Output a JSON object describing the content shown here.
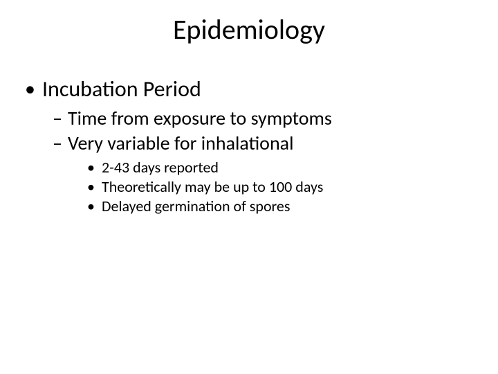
{
  "slide": {
    "title": "Epidemiology",
    "title_fontsize": 40,
    "background_color": "#ffffff",
    "text_color": "#000000",
    "font_family": "Calibri",
    "bullets": {
      "level1": [
        {
          "text": "Incubation Period",
          "marker": "•"
        }
      ],
      "level2": [
        {
          "text": "Time from exposure to symptoms",
          "marker": "–"
        },
        {
          "text": "Very variable for inhalational",
          "marker": "–"
        }
      ],
      "level3": [
        {
          "text": "2-43 days reported",
          "marker": "•"
        },
        {
          "text": "Theoretically may be up to 100 days",
          "marker": "•"
        },
        {
          "text": "Delayed germination of spores",
          "marker": "•"
        }
      ]
    },
    "typography": {
      "title_fontsize": 40,
      "l1_fontsize": 32,
      "l2_fontsize": 28,
      "l3_fontsize": 22
    }
  }
}
